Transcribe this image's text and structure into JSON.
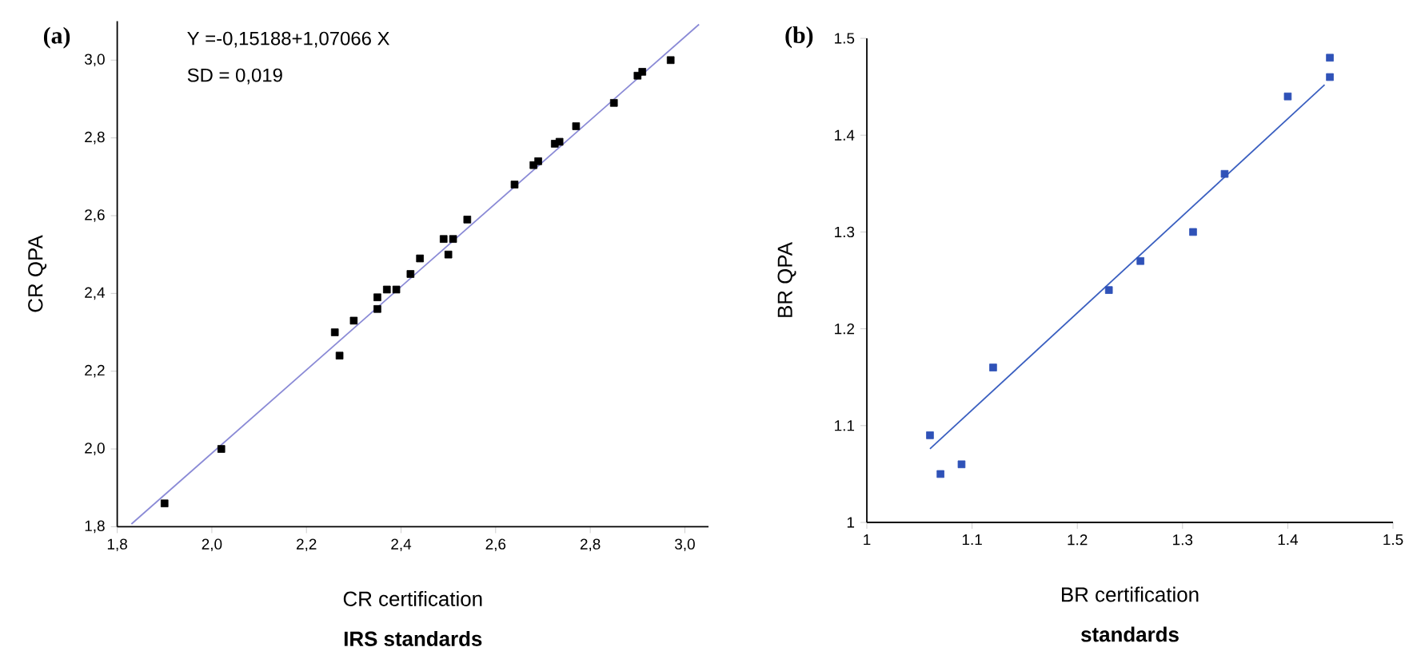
{
  "chart_data": [
    {
      "type": "scatter",
      "title": "(a)",
      "xlabel": "CR certification",
      "ylabel": "CR QPA",
      "annotations": [
        "Y =-0,15188+1,07066 X",
        "SD = 0,019",
        "**IRS standards**"
      ],
      "xlim": [
        1.8,
        3.05
      ],
      "ylim": [
        1.8,
        3.1
      ],
      "xticks": [
        {
          "value": 1.8,
          "label": "1,8"
        },
        {
          "value": 2.0,
          "label": "2,0"
        },
        {
          "value": 2.2,
          "label": "2,2"
        },
        {
          "value": 2.4,
          "label": "2,4"
        },
        {
          "value": 2.6,
          "label": "2,6"
        },
        {
          "value": 2.8,
          "label": "2,8"
        },
        {
          "value": 3.0,
          "label": "3,0"
        }
      ],
      "yticks": [
        {
          "value": 1.8,
          "label": "1,8"
        },
        {
          "value": 2.0,
          "label": "2,0"
        },
        {
          "value": 2.2,
          "label": "2,2"
        },
        {
          "value": 2.4,
          "label": "2,4"
        },
        {
          "value": 2.6,
          "label": "2,6"
        },
        {
          "value": 2.8,
          "label": "2,8"
        },
        {
          "value": 3.0,
          "label": "3,0"
        }
      ],
      "series": [
        {
          "marker": "square",
          "color": "#000000",
          "x": [
            1.9,
            2.02,
            2.26,
            2.27,
            2.3,
            2.35,
            2.35,
            2.37,
            2.39,
            2.42,
            2.44,
            2.49,
            2.5,
            2.51,
            2.54,
            2.64,
            2.68,
            2.69,
            2.725,
            2.735,
            2.77,
            2.85,
            2.9,
            2.91,
            2.97
          ],
          "values": [
            1.86,
            2.0,
            2.3,
            2.24,
            2.33,
            2.39,
            2.36,
            2.41,
            2.41,
            2.45,
            2.49,
            2.54,
            2.5,
            2.54,
            2.59,
            2.68,
            2.73,
            2.74,
            2.785,
            2.79,
            2.83,
            2.89,
            2.96,
            2.97,
            3.0
          ]
        },
        {
          "type": "line",
          "marker": "none",
          "color": "#8a8ad6",
          "x": [
            1.83,
            3.03
          ],
          "values": [
            1.807,
            3.092
          ]
        }
      ]
    },
    {
      "type": "scatter",
      "title": "(b)",
      "xlabel": "BR certification",
      "ylabel": "BR QPA",
      "annotations": [
        "**standards**"
      ],
      "xlim": [
        1,
        1.5
      ],
      "ylim": [
        1,
        1.5
      ],
      "xticks": [
        1,
        1.1,
        1.2,
        1.3,
        1.4,
        1.5
      ],
      "yticks": [
        1,
        1.1,
        1.2,
        1.3,
        1.4,
        1.5
      ],
      "series": [
        {
          "marker": "square",
          "color": "#2f52b8",
          "x": [
            1.06,
            1.07,
            1.09,
            1.12,
            1.23,
            1.26,
            1.31,
            1.34,
            1.4,
            1.44,
            1.44
          ],
          "values": [
            1.09,
            1.05,
            1.06,
            1.16,
            1.24,
            1.27,
            1.3,
            1.36,
            1.44,
            1.48,
            1.46
          ]
        },
        {
          "type": "line",
          "marker": "none",
          "color": "#3a5fc0",
          "x": [
            1.06,
            1.435
          ],
          "values": [
            1.076,
            1.452
          ]
        }
      ]
    }
  ]
}
